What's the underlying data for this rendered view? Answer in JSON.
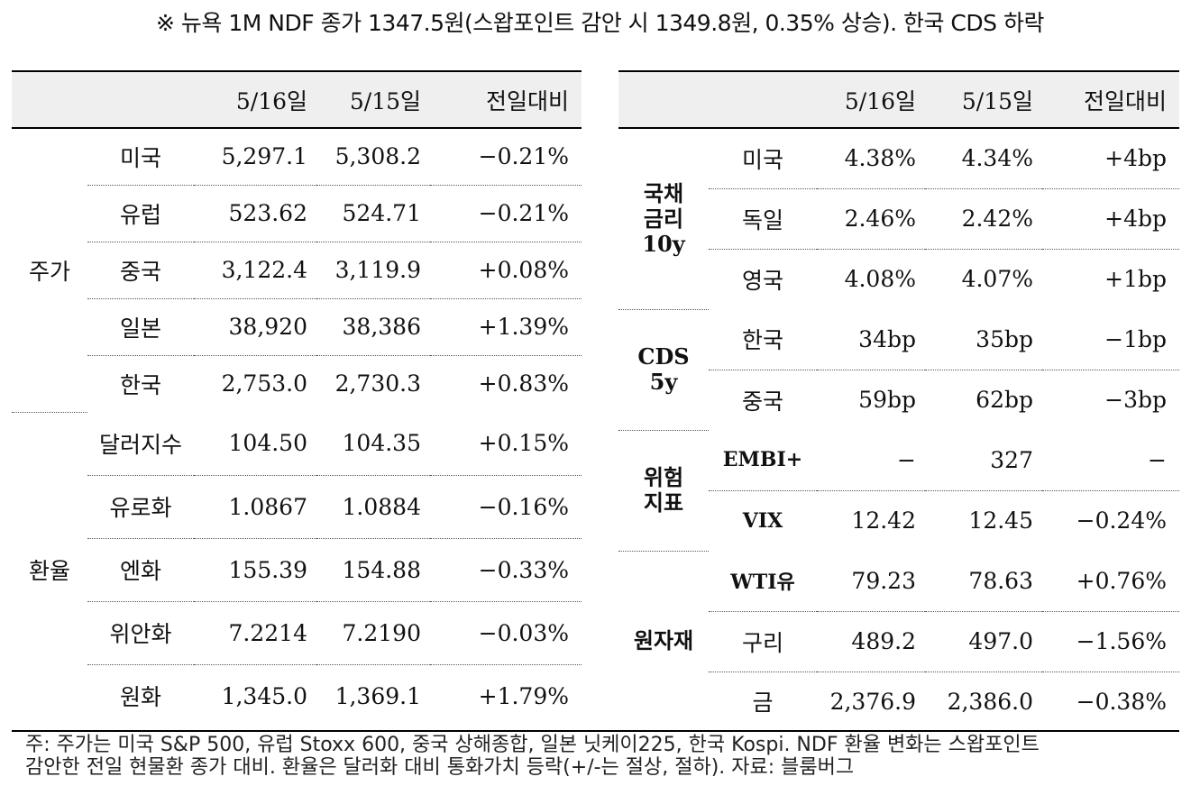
{
  "title": "※ 뉴욕 1M NDF 종가 1347.5원(스왑포인트 감안 시 1349.8원, 0.35% 상승). 한국 CDS 하락",
  "left": {
    "headers": [
      "5/16일",
      "5/15일",
      "전일대비"
    ],
    "groups": [
      {
        "name": "주가",
        "rows": [
          {
            "name": "미국",
            "d1": "5,297.1",
            "d2": "5,308.2",
            "chg": "−0.21%"
          },
          {
            "name": "유럽",
            "d1": "523.62",
            "d2": "524.71",
            "chg": "−0.21%"
          },
          {
            "name": "중국",
            "d1": "3,122.4",
            "d2": "3,119.9",
            "chg": "+0.08%"
          },
          {
            "name": "일본",
            "d1": "38,920",
            "d2": "38,386",
            "chg": "+1.39%"
          },
          {
            "name": "한국",
            "d1": "2,753.0",
            "d2": "2,730.3",
            "chg": "+0.83%"
          }
        ]
      },
      {
        "name": "환율",
        "rows": [
          {
            "name": "달러지수",
            "d1": "104.50",
            "d2": "104.35",
            "chg": "+0.15%"
          },
          {
            "name": "유로화",
            "d1": "1.0867",
            "d2": "1.0884",
            "chg": "−0.16%"
          },
          {
            "name": "엔화",
            "d1": "155.39",
            "d2": "154.88",
            "chg": "−0.33%"
          },
          {
            "name": "위안화",
            "d1": "7.2214",
            "d2": "7.2190",
            "chg": "−0.03%"
          },
          {
            "name": "원화",
            "d1": "1,345.0",
            "d2": "1,369.1",
            "chg": "+1.79%"
          }
        ]
      }
    ]
  },
  "right": {
    "headers": [
      "5/16일",
      "5/15일",
      "전일대비"
    ],
    "groups": [
      {
        "name_lines": [
          "국채",
          "금리",
          "10y"
        ],
        "rows": [
          {
            "name": "미국",
            "d1": "4.38%",
            "d2": "4.34%",
            "chg": "+4bp"
          },
          {
            "name": "독일",
            "d1": "2.46%",
            "d2": "2.42%",
            "chg": "+4bp"
          },
          {
            "name": "영국",
            "d1": "4.08%",
            "d2": "4.07%",
            "chg": "+1bp"
          }
        ]
      },
      {
        "name_lines": [
          "CDS",
          "5y"
        ],
        "rows": [
          {
            "name": "한국",
            "d1": "34bp",
            "d2": "35bp",
            "chg": "−1bp"
          },
          {
            "name": "중국",
            "d1": "59bp",
            "d2": "62bp",
            "chg": "−3bp"
          }
        ]
      },
      {
        "name_lines": [
          "위험",
          "지표"
        ],
        "rows": [
          {
            "name": "EMBI+",
            "d1": "−",
            "d2": "327",
            "chg": "−"
          },
          {
            "name": "VIX",
            "d1": "12.42",
            "d2": "12.45",
            "chg": "−0.24%"
          }
        ]
      },
      {
        "name_lines": [
          "원자재"
        ],
        "rows": [
          {
            "name": "WTI유",
            "d1": "79.23",
            "d2": "78.63",
            "chg": "+0.76%"
          },
          {
            "name": "구리",
            "d1": "489.2",
            "d2": "497.0",
            "chg": "−1.56%"
          },
          {
            "name": "금",
            "d1": "2,376.9",
            "d2": "2,386.0",
            "chg": "−0.38%"
          }
        ]
      }
    ]
  },
  "footnote": {
    "line1": "주: 주가는 미국 S&P 500, 유럽 Stoxx 600, 중국 상해종합, 일본 닛케이225, 한국 Kospi. NDF 환율 변화는 스왑포인트",
    "line2": "감안한 전일 현물환 종가 대비. 환율은 달러화 대비 통화가치 등락(+/-는 절상, 절하). 자료: 블룸버그"
  }
}
